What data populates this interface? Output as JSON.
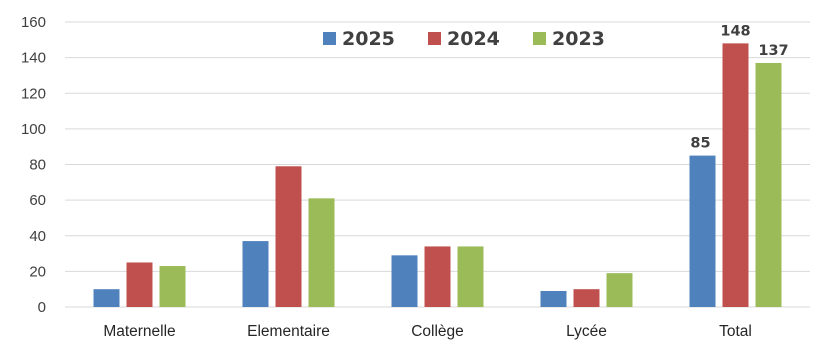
{
  "chart_data": {
    "type": "bar",
    "title": "",
    "xlabel": "",
    "ylabel": "",
    "categories": [
      "Maternelle",
      "Elementaire",
      "Collège",
      "Lycée",
      "Total"
    ],
    "series": [
      {
        "name": "2025",
        "color": "#4f81bd",
        "values": [
          10,
          37,
          29,
          9,
          85
        ]
      },
      {
        "name": "2024",
        "color": "#c0504d",
        "values": [
          25,
          79,
          34,
          10,
          148
        ]
      },
      {
        "name": "2023",
        "color": "#9bbb59",
        "values": [
          23,
          61,
          34,
          19,
          137
        ]
      }
    ],
    "ylim": [
      0,
      160
    ],
    "yticks": [
      "0",
      "20",
      "40",
      "60",
      "80",
      "100",
      "120",
      "140",
      "160"
    ],
    "grid": true,
    "legend_position": "top-center",
    "data_labels": [
      {
        "series": "2025",
        "category": "Total",
        "text": "85"
      },
      {
        "series": "2024",
        "category": "Total",
        "text": "148"
      },
      {
        "series": "2023",
        "category": "Total",
        "text": "137"
      }
    ]
  }
}
